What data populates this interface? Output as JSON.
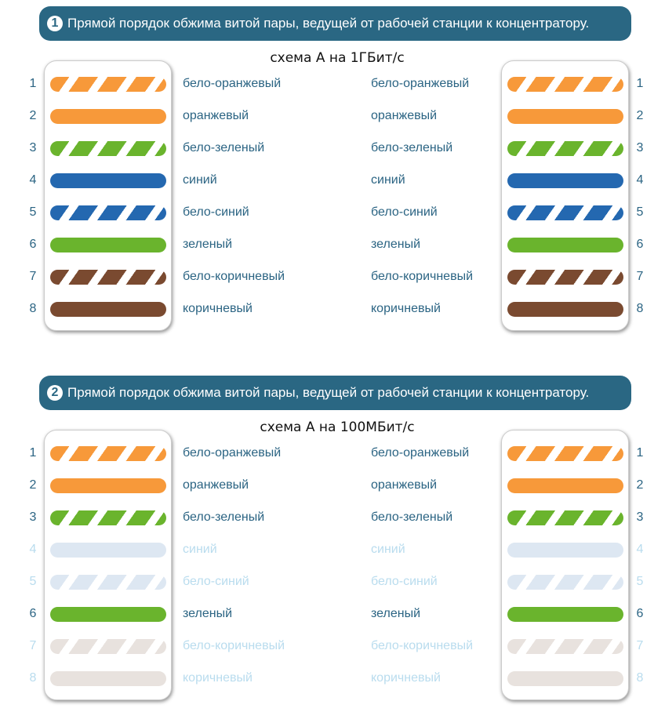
{
  "sections": [
    {
      "badge": "1",
      "title": "Прямой порядок обжима витой пары, ведущей от рабочей станции к концентратору.",
      "caption": "схема А на 1ГБит/с",
      "wires": [
        {
          "n": "1",
          "label": "бело-оранжевый",
          "color": "#f7993a",
          "striped": true,
          "active": true
        },
        {
          "n": "2",
          "label": "оранжевый",
          "color": "#f7993a",
          "striped": false,
          "active": true
        },
        {
          "n": "3",
          "label": "бело-зеленый",
          "color": "#6ab42d",
          "striped": true,
          "active": true
        },
        {
          "n": "4",
          "label": "синий",
          "color": "#2468b0",
          "striped": false,
          "active": true
        },
        {
          "n": "5",
          "label": "бело-синий",
          "color": "#2468b0",
          "striped": true,
          "active": true
        },
        {
          "n": "6",
          "label": "зеленый",
          "color": "#6ab42d",
          "striped": false,
          "active": true
        },
        {
          "n": "7",
          "label": "бело-коричневый",
          "color": "#7a4a30",
          "striped": true,
          "active": true
        },
        {
          "n": "8",
          "label": "коричневый",
          "color": "#7a4a30",
          "striped": false,
          "active": true
        }
      ]
    },
    {
      "badge": "2",
      "title": "Прямой порядок обжима витой пары, ведущей от рабочей станции к концентратору.",
      "caption": "схема А на 100МБит/с",
      "wires": [
        {
          "n": "1",
          "label": "бело-оранжевый",
          "color": "#f7993a",
          "striped": true,
          "active": true
        },
        {
          "n": "2",
          "label": "оранжевый",
          "color": "#f7993a",
          "striped": false,
          "active": true
        },
        {
          "n": "3",
          "label": "бело-зеленый",
          "color": "#6ab42d",
          "striped": true,
          "active": true
        },
        {
          "n": "4",
          "label": "синий",
          "color": "#dde7f2",
          "striped": false,
          "active": false
        },
        {
          "n": "5",
          "label": "бело-синий",
          "color": "#dde7f2",
          "striped": true,
          "active": false
        },
        {
          "n": "6",
          "label": "зеленый",
          "color": "#6ab42d",
          "striped": false,
          "active": true
        },
        {
          "n": "7",
          "label": "бело-коричневый",
          "color": "#e8e2de",
          "striped": true,
          "active": false
        },
        {
          "n": "8",
          "label": "коричневый",
          "color": "#e8e2de",
          "striped": false,
          "active": false
        }
      ]
    }
  ],
  "colors": {
    "text": "#2b6483",
    "faded_text": "#b9dcee",
    "banner": "#2a6783"
  }
}
